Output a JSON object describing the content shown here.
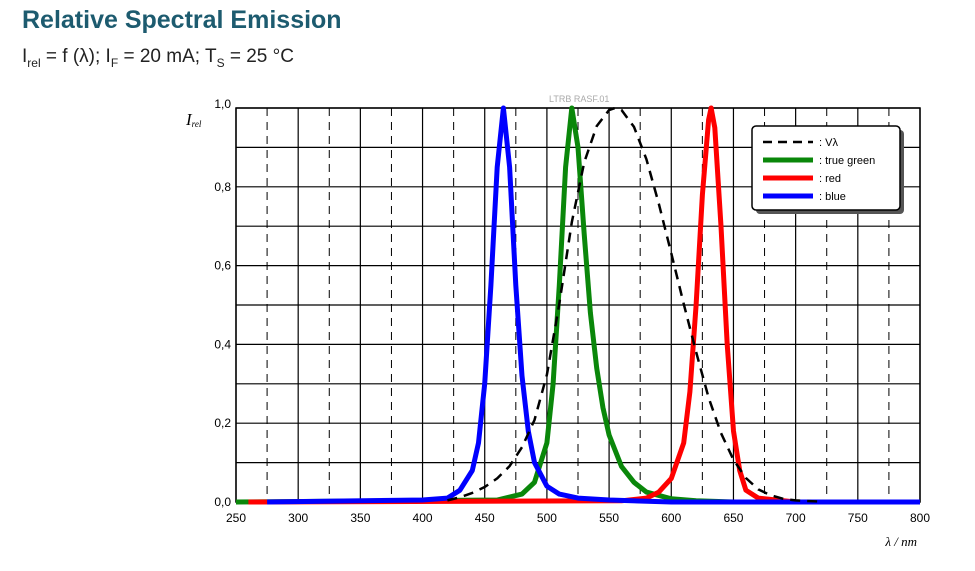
{
  "title": "Relative Spectral Emission",
  "subtitle": {
    "parts": [
      "I",
      "rel",
      " = f (λ); I",
      "F",
      " = 20 mA; T",
      "S",
      " = 25 °C"
    ]
  },
  "chart_data": {
    "type": "line",
    "watermark": "LTRB RASF.01",
    "ylabel": "I",
    "ylabel_sub": "rel",
    "xlabel": "λ / nm",
    "xlim": [
      250,
      800
    ],
    "ylim": [
      0,
      1.0
    ],
    "xticks": [
      "250",
      "300",
      "350",
      "400",
      "450",
      "500",
      "550",
      "600",
      "650",
      "700",
      "750",
      "800"
    ],
    "yticks": [
      "0,0",
      "0,2",
      "0,4",
      "0,6",
      "0,8",
      "1,0"
    ],
    "grid": "solid every 50 nm and 0.1; dashed at 25 nm offsets",
    "legend_position": "top-right",
    "series": [
      {
        "name": ": Vλ",
        "color": "#000000",
        "style": "dashed",
        "x": [
          420,
          430,
          440,
          450,
          460,
          470,
          480,
          490,
          500,
          510,
          520,
          530,
          540,
          550,
          555,
          560,
          570,
          580,
          590,
          600,
          610,
          620,
          630,
          640,
          650,
          660,
          670,
          680,
          690,
          700,
          720
        ],
        "y": [
          0.004,
          0.012,
          0.023,
          0.038,
          0.06,
          0.091,
          0.139,
          0.208,
          0.323,
          0.503,
          0.71,
          0.862,
          0.954,
          0.995,
          1.0,
          0.995,
          0.952,
          0.87,
          0.757,
          0.631,
          0.503,
          0.381,
          0.265,
          0.175,
          0.107,
          0.061,
          0.032,
          0.017,
          0.008,
          0.004,
          0.001
        ]
      },
      {
        "name": ": true green",
        "color": "#0a870a",
        "style": "solid",
        "x": [
          250,
          460,
          480,
          490,
          500,
          505,
          510,
          515,
          520,
          525,
          530,
          535,
          540,
          545,
          550,
          560,
          570,
          580,
          600,
          620,
          650,
          800
        ],
        "y": [
          0,
          0.005,
          0.02,
          0.05,
          0.15,
          0.3,
          0.55,
          0.85,
          1.0,
          0.9,
          0.68,
          0.48,
          0.34,
          0.24,
          0.17,
          0.09,
          0.05,
          0.025,
          0.008,
          0.003,
          0,
          0
        ]
      },
      {
        "name": ": red",
        "color": "#ff0000",
        "style": "solid",
        "x": [
          260,
          560,
          580,
          590,
          600,
          610,
          615,
          620,
          625,
          630,
          632,
          635,
          640,
          645,
          650,
          655,
          660,
          670,
          700,
          800
        ],
        "y": [
          0,
          0.003,
          0.01,
          0.025,
          0.06,
          0.15,
          0.28,
          0.5,
          0.78,
          0.97,
          1.0,
          0.95,
          0.7,
          0.4,
          0.18,
          0.08,
          0.03,
          0.01,
          0,
          0
        ]
      },
      {
        "name": ": blue",
        "color": "#0000ff",
        "style": "solid",
        "x": [
          275,
          400,
          420,
          430,
          440,
          445,
          450,
          455,
          460,
          465,
          470,
          475,
          480,
          485,
          490,
          500,
          510,
          525,
          550,
          600,
          800
        ],
        "y": [
          0,
          0.005,
          0.01,
          0.03,
          0.08,
          0.15,
          0.3,
          0.55,
          0.85,
          1.0,
          0.85,
          0.55,
          0.32,
          0.18,
          0.1,
          0.04,
          0.02,
          0.01,
          0.005,
          0,
          0
        ]
      }
    ]
  }
}
